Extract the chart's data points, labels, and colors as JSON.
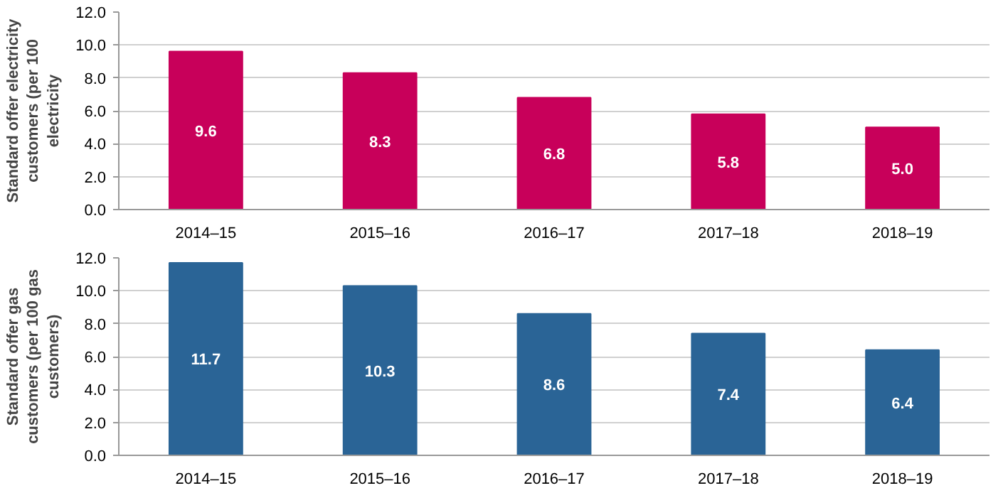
{
  "chart_data": [
    {
      "type": "bar",
      "ylabel": "Standard offer electricity customers (per 100 electricity",
      "categories": [
        "2014–15",
        "2015–16",
        "2016–17",
        "2017–18",
        "2018–19"
      ],
      "values": [
        9.6,
        8.3,
        6.8,
        5.8,
        5.0
      ],
      "value_labels": [
        "9.6",
        "8.3",
        "6.8",
        "5.8",
        "5.0"
      ],
      "color": "#c8005a",
      "ylim": [
        0,
        12
      ],
      "yticks": [
        {
          "value": 0,
          "label": "0.0"
        },
        {
          "value": 2,
          "label": "2.0"
        },
        {
          "value": 4,
          "label": "4.0"
        },
        {
          "value": 6,
          "label": "6.0"
        },
        {
          "value": 8,
          "label": "8.0"
        },
        {
          "value": 10,
          "label": "10.0"
        },
        {
          "value": 12,
          "label": "12.0"
        }
      ],
      "grid": "y"
    },
    {
      "type": "bar",
      "ylabel": "Standard offer gas customers (per 100 gas customers)",
      "categories": [
        "2014–15",
        "2015–16",
        "2016–17",
        "2017–18",
        "2018–19"
      ],
      "values": [
        11.7,
        10.3,
        8.6,
        7.4,
        6.4
      ],
      "value_labels": [
        "11.7",
        "10.3",
        "8.6",
        "7.4",
        "6.4"
      ],
      "color": "#2a6496",
      "ylim": [
        0,
        12
      ],
      "yticks": [
        {
          "value": 0,
          "label": "0.0"
        },
        {
          "value": 2,
          "label": "2.0"
        },
        {
          "value": 4,
          "label": "4.0"
        },
        {
          "value": 6,
          "label": "6.0"
        },
        {
          "value": 8,
          "label": "8.0"
        },
        {
          "value": 10,
          "label": "10.0"
        },
        {
          "value": 12,
          "label": "12.0"
        }
      ],
      "grid": "y"
    }
  ]
}
